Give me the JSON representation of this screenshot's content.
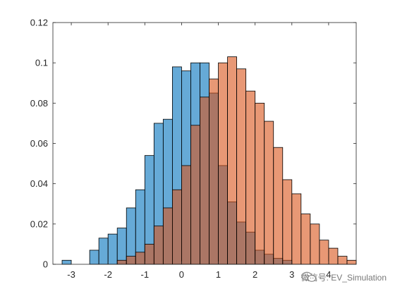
{
  "chart_data": {
    "type": "bar",
    "subtype": "overlapping-histogram",
    "title": "",
    "xlabel": "",
    "ylabel": "",
    "xlim": [
      -3.5,
      4.75
    ],
    "ylim": [
      0,
      0.12
    ],
    "xticks": [
      -3,
      -2,
      -1,
      0,
      1,
      2,
      3,
      4
    ],
    "yticks": [
      0,
      0.02,
      0.04,
      0.06,
      0.08,
      0.1,
      0.12
    ],
    "xtick_labels": [
      "-3",
      "-2",
      "-1",
      "0",
      "1",
      "2",
      "3",
      "4"
    ],
    "ytick_labels": [
      "0",
      "0.02",
      "0.04",
      "0.06",
      "0.08",
      "0.1",
      "0.12"
    ],
    "grid": false,
    "legend": "none",
    "bin_width": 0.25,
    "series": [
      {
        "bins": [
          {
            "start": -3.25,
            "value": 0.002
          },
          {
            "start": -3.0,
            "value": 0.0
          },
          {
            "start": -2.75,
            "value": 0.0
          },
          {
            "start": -2.5,
            "value": 0.007
          },
          {
            "start": -2.25,
            "value": 0.013
          },
          {
            "start": -2.0,
            "value": 0.015
          },
          {
            "start": -1.75,
            "value": 0.018
          },
          {
            "start": -1.5,
            "value": 0.028
          },
          {
            "start": -1.25,
            "value": 0.037
          },
          {
            "start": -1.0,
            "value": 0.054
          },
          {
            "start": -0.75,
            "value": 0.07
          },
          {
            "start": -0.5,
            "value": 0.072
          },
          {
            "start": -0.25,
            "value": 0.098
          },
          {
            "start": 0.0,
            "value": 0.096
          },
          {
            "start": 0.25,
            "value": 0.1
          },
          {
            "start": 0.5,
            "value": 0.1
          },
          {
            "start": 0.75,
            "value": 0.085
          },
          {
            "start": 1.0,
            "value": 0.049
          },
          {
            "start": 1.25,
            "value": 0.031
          },
          {
            "start": 1.5,
            "value": 0.021
          },
          {
            "start": 1.75,
            "value": 0.016
          },
          {
            "start": 2.0,
            "value": 0.007
          },
          {
            "start": 2.25,
            "value": 0.005
          },
          {
            "start": 2.5,
            "value": 0.003
          },
          {
            "start": 2.75,
            "value": 0.002
          },
          {
            "start": 3.0,
            "value": 0.0
          }
        ],
        "color": "#0072BD"
      },
      {
        "bins": [
          {
            "start": -2.0,
            "value": 0.0
          },
          {
            "start": -1.75,
            "value": 0.002
          },
          {
            "start": -1.5,
            "value": 0.004
          },
          {
            "start": -1.25,
            "value": 0.006
          },
          {
            "start": -1.0,
            "value": 0.01
          },
          {
            "start": -0.75,
            "value": 0.019
          },
          {
            "start": -0.5,
            "value": 0.028
          },
          {
            "start": -0.25,
            "value": 0.037
          },
          {
            "start": 0.0,
            "value": 0.049
          },
          {
            "start": 0.25,
            "value": 0.069
          },
          {
            "start": 0.5,
            "value": 0.083
          },
          {
            "start": 0.75,
            "value": 0.092
          },
          {
            "start": 1.0,
            "value": 0.1
          },
          {
            "start": 1.25,
            "value": 0.103
          },
          {
            "start": 1.5,
            "value": 0.097
          },
          {
            "start": 1.75,
            "value": 0.086
          },
          {
            "start": 2.0,
            "value": 0.08
          },
          {
            "start": 2.25,
            "value": 0.071
          },
          {
            "start": 2.5,
            "value": 0.058
          },
          {
            "start": 2.75,
            "value": 0.042
          },
          {
            "start": 3.0,
            "value": 0.035
          },
          {
            "start": 3.25,
            "value": 0.025
          },
          {
            "start": 3.5,
            "value": 0.02
          },
          {
            "start": 3.75,
            "value": 0.012
          },
          {
            "start": 4.0,
            "value": 0.008
          },
          {
            "start": 4.25,
            "value": 0.004
          },
          {
            "start": 4.5,
            "value": 0.002
          }
        ],
        "color": "#D95319"
      }
    ],
    "style": {
      "face_alpha": 0.6,
      "edge_color": "#000000",
      "background": "#ffffff",
      "axes_color": "#262626"
    }
  },
  "watermark": {
    "text": "微信号: EV_Simulation",
    "icon": "wechat-icon"
  }
}
